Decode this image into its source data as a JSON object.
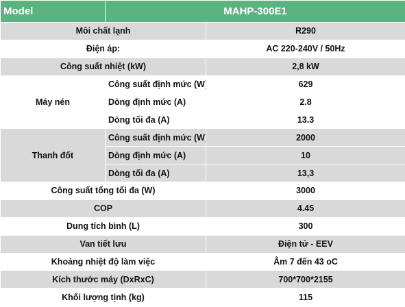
{
  "header": {
    "label": "Model",
    "value": "MAHP-300E1"
  },
  "rows": [
    {
      "label": "Môi chất lạnh",
      "value": "R290"
    },
    {
      "label": "Điện áp:",
      "value": "AC 220-240V / 50Hz"
    },
    {
      "label": "Công suất nhiệt (kW)",
      "value": "2,8 kW"
    },
    {
      "label": "Máy nén",
      "items": [
        {
          "label": "Công suất định mức (W)",
          "value": "629"
        },
        {
          "label": "Dòng định mức (A)",
          "value": "2.8"
        },
        {
          "label": "Dòng tối đa (A)",
          "value": "13.3"
        }
      ]
    },
    {
      "label": "Thanh đốt",
      "items": [
        {
          "label": "Công suất định mức (W)",
          "value": "2000"
        },
        {
          "label": "Dòng định mức (A)",
          "value": "10"
        },
        {
          "label": "Dòng tối đa (A)",
          "value": "13,3"
        }
      ]
    },
    {
      "label": "Công suất tổng tối đa (W)",
      "value": "3000"
    },
    {
      "label": "COP",
      "value": "4.45"
    },
    {
      "label": "Dung tích bình (L)",
      "value": "300"
    },
    {
      "label": "Van tiết lưu",
      "value": "Điện tử - EEV"
    },
    {
      "label": "Khoảng nhiệt độ làm việc",
      "value": "Âm 7 đến 43 oC"
    },
    {
      "label": "Kích thước máy (DxRxC)",
      "value": "700*700*2155"
    },
    {
      "label": "Khối lượng tịnh (kg)",
      "value": "115"
    }
  ]
}
